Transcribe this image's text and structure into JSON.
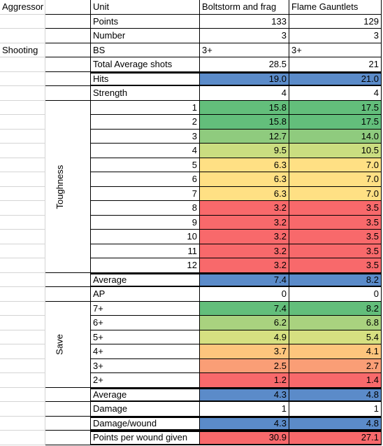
{
  "sheet": {
    "aggressor": "Aggressor",
    "shooting": "Shooting",
    "toughness_label": "Toughness",
    "save_label": "Save",
    "rows": [
      {
        "label": "Unit",
        "values": [
          "Boltstorm and frag",
          "Flame Gauntlets"
        ]
      },
      {
        "label": "Points",
        "values": [
          "133",
          "129"
        ]
      },
      {
        "label": "Number",
        "values": [
          "3",
          "3"
        ]
      },
      {
        "label": "BS",
        "values": [
          "3+",
          "3+"
        ]
      },
      {
        "label": "Total Average shots",
        "values": [
          "28.5",
          "21"
        ]
      },
      {
        "label": "Hits",
        "values": [
          "19.0",
          "21.0"
        ]
      },
      {
        "label": "Strength",
        "values": [
          "4",
          "4"
        ]
      },
      {
        "label": "1",
        "values": [
          "15.8",
          "17.5"
        ]
      },
      {
        "label": "2",
        "values": [
          "15.8",
          "17.5"
        ]
      },
      {
        "label": "3",
        "values": [
          "12.7",
          "14.0"
        ]
      },
      {
        "label": "4",
        "values": [
          "9.5",
          "10.5"
        ]
      },
      {
        "label": "5",
        "values": [
          "6.3",
          "7.0"
        ]
      },
      {
        "label": "6",
        "values": [
          "6.3",
          "7.0"
        ]
      },
      {
        "label": "7",
        "values": [
          "6.3",
          "7.0"
        ]
      },
      {
        "label": "8",
        "values": [
          "3.2",
          "3.5"
        ]
      },
      {
        "label": "9",
        "values": [
          "3.2",
          "3.5"
        ]
      },
      {
        "label": "10",
        "values": [
          "3.2",
          "3.5"
        ]
      },
      {
        "label": "11",
        "values": [
          "3.2",
          "3.5"
        ]
      },
      {
        "label": "12",
        "values": [
          "3.2",
          "3.5"
        ]
      },
      {
        "label": "Average",
        "values": [
          "7.4",
          "8.2"
        ]
      },
      {
        "label": "AP",
        "values": [
          "0",
          "0"
        ]
      },
      {
        "label": "7+",
        "values": [
          "7.4",
          "8.2"
        ]
      },
      {
        "label": "6+",
        "values": [
          "6.2",
          "6.8"
        ]
      },
      {
        "label": "5+",
        "values": [
          "4.9",
          "5.4"
        ]
      },
      {
        "label": "4+",
        "values": [
          "3.7",
          "4.1"
        ]
      },
      {
        "label": "3+",
        "values": [
          "2.5",
          "2.7"
        ]
      },
      {
        "label": "2+",
        "values": [
          "1.2",
          "1.4"
        ]
      },
      {
        "label": "Average",
        "values": [
          "4.3",
          "4.8"
        ]
      },
      {
        "label": "Damage",
        "values": [
          "1",
          "1"
        ]
      },
      {
        "label": "Damage/wound",
        "values": [
          "4.3",
          "4.8"
        ]
      },
      {
        "label": "Points per wound given",
        "values": [
          "30.9",
          "27.1"
        ]
      }
    ]
  }
}
